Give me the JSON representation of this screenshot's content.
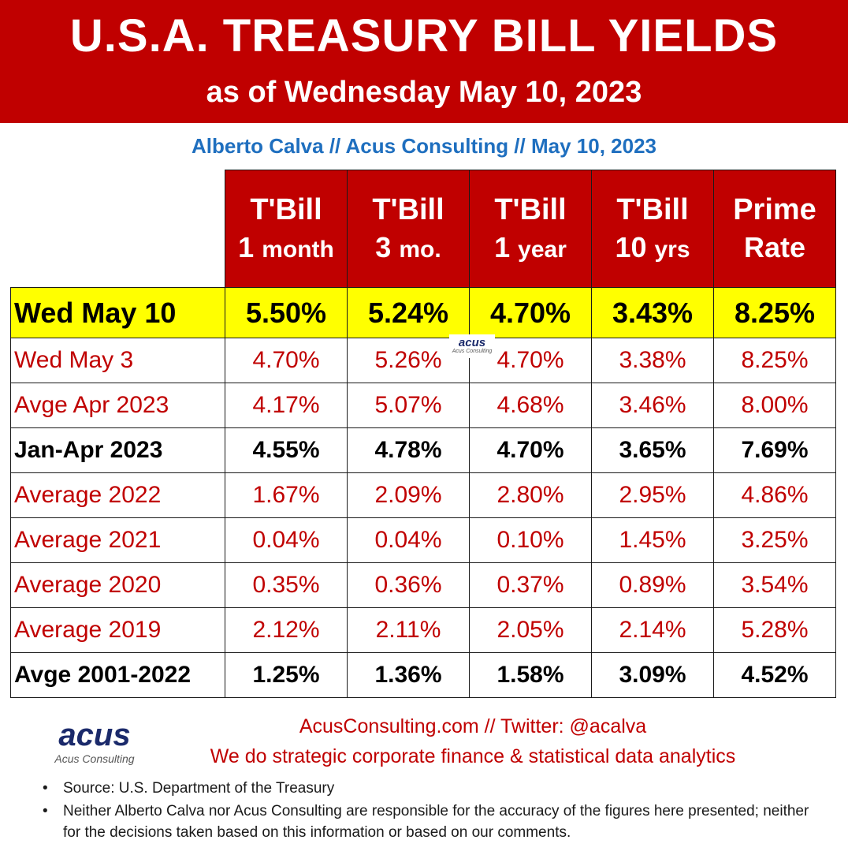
{
  "header": {
    "title": "U.S.A. TREASURY BILL YIELDS",
    "subtitle": "as of Wednesday May 10, 2023"
  },
  "byline": "Alberto Calva // Acus Consulting // May 10, 2023",
  "colors": {
    "banner_red": "#c00000",
    "highlight_yellow": "#ffff00",
    "byline_blue": "#1f6fbf",
    "logo_navy": "#1b2a6b"
  },
  "flag_icon": "us-flag-icon",
  "table": {
    "columns": [
      {
        "line1": "T'Bill",
        "line2_num": "1",
        "line2_unit": "month"
      },
      {
        "line1": "T'Bill",
        "line2_num": "3",
        "line2_unit": "mo."
      },
      {
        "line1": "T'Bill",
        "line2_num": "1",
        "line2_unit": "year"
      },
      {
        "line1": "T'Bill",
        "line2_num": "10",
        "line2_unit": "yrs"
      },
      {
        "line1": "Prime",
        "line2_num": "Rate",
        "line2_unit": ""
      }
    ],
    "rows": [
      {
        "label": "Wed May 10",
        "values": [
          "5.50%",
          "5.24%",
          "4.70%",
          "3.43%",
          "8.25%"
        ]
      },
      {
        "label": "Wed May 3",
        "values": [
          "4.70%",
          "5.26%",
          "4.70%",
          "3.38%",
          "8.25%"
        ]
      },
      {
        "label": "Avge Apr 2023",
        "values": [
          "4.17%",
          "5.07%",
          "4.68%",
          "3.46%",
          "8.00%"
        ]
      },
      {
        "label": "Jan-Apr 2023",
        "values": [
          "4.55%",
          "4.78%",
          "4.70%",
          "3.65%",
          "7.69%"
        ]
      },
      {
        "label": "Average 2022",
        "values": [
          "1.67%",
          "2.09%",
          "2.80%",
          "2.95%",
          "4.86%"
        ]
      },
      {
        "label": "Average 2021",
        "values": [
          "0.04%",
          "0.04%",
          "0.10%",
          "1.45%",
          "3.25%"
        ]
      },
      {
        "label": "Average 2020",
        "values": [
          "0.35%",
          "0.36%",
          "0.37%",
          "0.89%",
          "3.54%"
        ]
      },
      {
        "label": "Average 2019",
        "values": [
          "2.12%",
          "2.11%",
          "2.05%",
          "2.14%",
          "5.28%"
        ]
      },
      {
        "label": "Avge 2001-2022",
        "values": [
          "1.25%",
          "1.36%",
          "1.58%",
          "3.09%",
          "4.52%"
        ]
      }
    ]
  },
  "watermark": {
    "word": "acus",
    "sub": "Acus Consulting"
  },
  "logo": {
    "word": "acus",
    "sub": "Acus Consulting"
  },
  "contact": {
    "line1": "AcusConsulting.com // Twitter: @acalva",
    "line2": "We do strategic corporate finance & statistical data analytics"
  },
  "notes": [
    "Source: U.S. Department of the Treasury",
    "Neither Alberto Calva nor Acus Consulting are responsible for the accuracy of the figures here presented; neither for the decisions taken based on this information or based on our comments."
  ]
}
